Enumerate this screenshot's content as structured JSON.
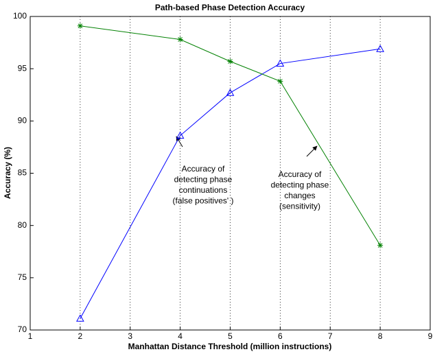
{
  "chart_data": {
    "type": "line",
    "title": "Path-based Phase Detection Accuracy",
    "xlabel": "Manhattan Distance Threshold (million instructions)",
    "ylabel": "Accuracy (%)",
    "x": [
      2,
      4,
      5,
      6,
      8
    ],
    "series": [
      {
        "color": "#0000ff",
        "marker": "triangle",
        "values": [
          71.1,
          88.6,
          92.7,
          95.5,
          96.9
        ]
      },
      {
        "color": "#008000",
        "marker": "asterisk",
        "values": [
          99.1,
          97.8,
          95.7,
          93.8,
          78.1
        ]
      }
    ],
    "xlim": [
      1,
      9
    ],
    "xticks": [
      1,
      2,
      3,
      4,
      5,
      6,
      7,
      8,
      9
    ],
    "ylim": [
      70,
      100
    ],
    "yticks": [
      70,
      75,
      80,
      85,
      90,
      95,
      100
    ],
    "grid": "x",
    "annotations": [
      {
        "lines": [
          "Accuracy of",
          "detecting phase",
          "continuations",
          "(false positives' )"
        ]
      },
      {
        "lines": [
          "Accuracy of",
          "detecting phase",
          "changes",
          "(sensitivity)"
        ]
      }
    ]
  }
}
